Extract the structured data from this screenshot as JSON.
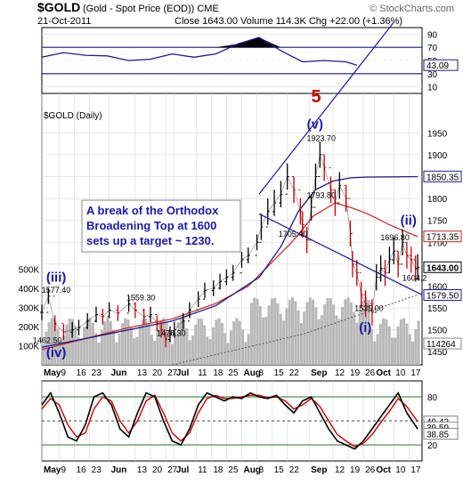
{
  "header": {
    "symbol": "$GOLD",
    "description": "(Gold - Spot Price (EOD)) CME",
    "watermark": "© StockCharts.com",
    "date": "21-Oct-2011",
    "quote": "Close 1643.00  Volume 114.3K  Chg +22.00 (+1.36%)"
  },
  "colors": {
    "price": "#000000",
    "price_up": "#cc0000",
    "ma50": "#cc2222",
    "ma200": "#1a1a8a",
    "trendline": "#1a1aaa",
    "rsi": "#1a1a8a",
    "rsi_fill": "#000000",
    "volume": "#b8b8b8",
    "stoch_k": "#000000",
    "stoch_d": "#cc0000",
    "label_blue": "#1a1aaa",
    "wave5": "#cc0000",
    "grid": "#d8d8d8"
  },
  "chart_data": [
    {
      "type": "line",
      "panel": "RSI",
      "axis_ticks": [
        10,
        30,
        50,
        70,
        90
      ],
      "ylim": [
        0,
        100
      ],
      "value_label": "43.09",
      "x_days": [
        0,
        10,
        20,
        30,
        40,
        50,
        60,
        70,
        80,
        90,
        100,
        110,
        120,
        130,
        140,
        145
      ],
      "values": [
        55,
        62,
        58,
        57,
        50,
        52,
        60,
        55,
        60,
        75,
        85,
        65,
        48,
        50,
        48,
        43
      ]
    },
    {
      "type": "line",
      "panel": "Price",
      "legend": "$GOLD (Daily)",
      "ylim": [
        1420,
        2040
      ],
      "axis_ticks": [
        1450,
        1500,
        1550,
        1600,
        1650,
        1700,
        1750,
        1800,
        1850,
        1900,
        1950
      ],
      "x_labels": [
        {
          "d": 0,
          "label": "May"
        },
        {
          "d": 8,
          "label": "9"
        },
        {
          "d": 15,
          "label": "16"
        },
        {
          "d": 22,
          "label": "23"
        },
        {
          "d": 31,
          "label": "Jun"
        },
        {
          "d": 43,
          "label": "13"
        },
        {
          "d": 50,
          "label": "20"
        },
        {
          "d": 57,
          "label": "27"
        },
        {
          "d": 61,
          "label": "Jul"
        },
        {
          "d": 71,
          "label": "11"
        },
        {
          "d": 78,
          "label": "18"
        },
        {
          "d": 85,
          "label": "25"
        },
        {
          "d": 92,
          "label": "Aug"
        },
        {
          "d": 99,
          "label": "8"
        },
        {
          "d": 106,
          "label": "15"
        },
        {
          "d": 113,
          "label": "22"
        },
        {
          "d": 123,
          "label": "Sep"
        },
        {
          "d": 134,
          "label": "12"
        },
        {
          "d": 141,
          "label": "19"
        },
        {
          "d": 148,
          "label": "26"
        },
        {
          "d": 153,
          "label": "Oct"
        },
        {
          "d": 162,
          "label": "10"
        },
        {
          "d": 169,
          "label": "17"
        }
      ],
      "series": [
        {
          "name": "$GOLD",
          "x_days": [
            0,
            3,
            6,
            10,
            14,
            17,
            21,
            25,
            28,
            31,
            35,
            40,
            43,
            47,
            50,
            53,
            55,
            57,
            59,
            61,
            65,
            68,
            72,
            75,
            79,
            82,
            85,
            88,
            92,
            95,
            99,
            101,
            104,
            107,
            110,
            113,
            116,
            119,
            120,
            122,
            124,
            126,
            128,
            130,
            133,
            135,
            137,
            140,
            142,
            143,
            145,
            147,
            149,
            152,
            154,
            156,
            158,
            160,
            162,
            164,
            166,
            168,
            170,
            172,
            173
          ],
          "values": [
            1540,
            1577,
            1515,
            1495,
            1500,
            1505,
            1520,
            1535,
            1530,
            1545,
            1538,
            1559,
            1545,
            1530,
            1535,
            1515,
            1500,
            1478,
            1490,
            1500,
            1520,
            1545,
            1570,
            1590,
            1595,
            1610,
            1620,
            1630,
            1660,
            1670,
            1700,
            1735,
            1770,
            1790,
            1810,
            1850,
            1820,
            1770,
            1740,
            1705,
            1780,
            1850,
            1900,
            1870,
            1820,
            1790,
            1830,
            1800,
            1720,
            1650,
            1630,
            1580,
            1560,
            1540,
            1620,
            1640,
            1630,
            1660,
            1680,
            1650,
            1700,
            1670,
            1660,
            1640,
            1643
          ]
        },
        {
          "name": "MA 50",
          "x_days": [
            0,
            20,
            40,
            60,
            80,
            95,
            105,
            115,
            125,
            135,
            142,
            150,
            160,
            173
          ],
          "values": [
            1455,
            1480,
            1505,
            1525,
            1560,
            1600,
            1650,
            1700,
            1760,
            1790,
            1780,
            1765,
            1740,
            1713
          ]
        },
        {
          "name": "MA 200",
          "x_days": [
            0,
            20,
            40,
            60,
            80,
            100,
            110,
            118,
            126,
            134,
            142,
            150,
            173
          ],
          "values": [
            1460,
            1480,
            1500,
            1520,
            1555,
            1620,
            1690,
            1770,
            1820,
            1840,
            1847,
            1849,
            1850
          ]
        }
      ],
      "right_labels": [
        "1850.35",
        "1713.35",
        "1643.00",
        "1579.50"
      ],
      "price_labels": [
        {
          "d": 4,
          "v": 1577,
          "text": "1577.40"
        },
        {
          "d": 0,
          "v": 1462,
          "text": "1462.50"
        },
        {
          "d": 43,
          "v": 1559,
          "text": "1559.30"
        },
        {
          "d": 57,
          "v": 1478,
          "text": "1478.30"
        },
        {
          "d": 126,
          "v": 1923,
          "text": "1923.70"
        },
        {
          "d": 126,
          "v": 1793,
          "text": "1793.80"
        },
        {
          "d": 113,
          "v": 1705,
          "text": "1705.40"
        },
        {
          "d": 160,
          "v": 1696,
          "text": "1696.80"
        },
        {
          "d": 148,
          "v": 1535,
          "text": "1535.00"
        },
        {
          "d": 170,
          "v": 1604,
          "text": "1604.2"
        }
      ],
      "wave_labels": [
        {
          "d": 2,
          "v": 1610,
          "text": "(iii)"
        },
        {
          "d": 2,
          "v": 1438,
          "text": "(iv)"
        },
        {
          "d": 124,
          "v": 2020,
          "text": "5"
        },
        {
          "d": 122,
          "v": 1960,
          "text": "(v)"
        },
        {
          "d": 165,
          "v": 1740,
          "text": "(ii)"
        },
        {
          "d": 146,
          "v": 1495,
          "text": "(i)"
        }
      ],
      "annotation": [
        "A break of the Orthodox",
        "Broadening Top at 1600",
        "sets up a target ~ 1230."
      ]
    },
    {
      "type": "bar",
      "panel": "Volume",
      "axis_ticks": [
        "100K",
        "200K",
        "300K",
        "400K",
        "500K"
      ],
      "value_label": "114264",
      "ylim": [
        0,
        600
      ],
      "note": ""
    },
    {
      "type": "line",
      "panel": "Stochastic",
      "ylim": [
        0,
        100
      ],
      "axis_ticks": [
        20,
        50,
        80
      ],
      "value_labels": [
        "49.42",
        "39.59",
        "38.85"
      ],
      "x_days": [
        0,
        4,
        8,
        12,
        16,
        20,
        24,
        28,
        32,
        36,
        40,
        44,
        48,
        52,
        56,
        60,
        64,
        68,
        72,
        76,
        80,
        84,
        88,
        92,
        96,
        100,
        104,
        108,
        112,
        116,
        120,
        124,
        128,
        132,
        136,
        140,
        144,
        148,
        152,
        156,
        160,
        164,
        168,
        173
      ],
      "series": [
        {
          "name": "%K",
          "values": [
            70,
            85,
            60,
            30,
            25,
            45,
            80,
            85,
            70,
            40,
            30,
            60,
            85,
            80,
            50,
            25,
            20,
            40,
            70,
            85,
            80,
            75,
            80,
            78,
            85,
            80,
            78,
            82,
            70,
            60,
            75,
            80,
            60,
            40,
            25,
            20,
            15,
            25,
            40,
            55,
            70,
            85,
            60,
            40
          ]
        },
        {
          "name": "%D",
          "values": [
            65,
            78,
            70,
            45,
            30,
            35,
            65,
            80,
            75,
            50,
            35,
            50,
            75,
            82,
            60,
            35,
            25,
            35,
            60,
            78,
            82,
            78,
            78,
            80,
            82,
            82,
            79,
            80,
            75,
            65,
            70,
            78,
            68,
            50,
            33,
            25,
            18,
            22,
            33,
            48,
            62,
            78,
            68,
            49
          ]
        }
      ],
      "x_labels": [
        {
          "d": 0,
          "label": "May"
        },
        {
          "d": 8,
          "label": "9"
        },
        {
          "d": 15,
          "label": "16"
        },
        {
          "d": 22,
          "label": "23"
        },
        {
          "d": 31,
          "label": "Jun"
        },
        {
          "d": 43,
          "label": "13"
        },
        {
          "d": 50,
          "label": "20"
        },
        {
          "d": 57,
          "label": "27"
        },
        {
          "d": 61,
          "label": "Jul"
        },
        {
          "d": 71,
          "label": "11"
        },
        {
          "d": 78,
          "label": "18"
        },
        {
          "d": 85,
          "label": "25"
        },
        {
          "d": 92,
          "label": "Aug"
        },
        {
          "d": 99,
          "label": "8"
        },
        {
          "d": 106,
          "label": "15"
        },
        {
          "d": 113,
          "label": "22"
        },
        {
          "d": 123,
          "label": "Sep"
        },
        {
          "d": 134,
          "label": "12"
        },
        {
          "d": 141,
          "label": "19"
        },
        {
          "d": 148,
          "label": "26"
        },
        {
          "d": 153,
          "label": "Oct"
        },
        {
          "d": 162,
          "label": "10"
        },
        {
          "d": 169,
          "label": "17"
        }
      ]
    }
  ]
}
